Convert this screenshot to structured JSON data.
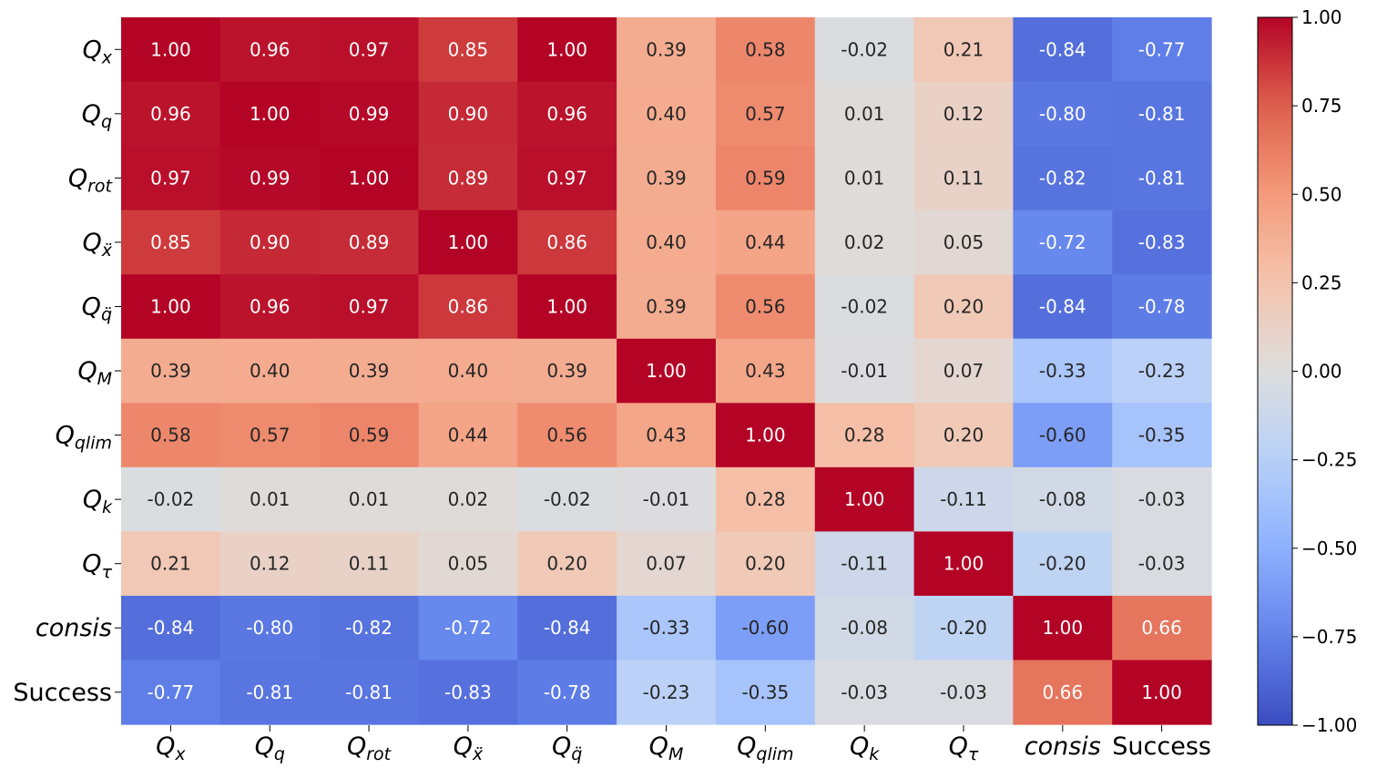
{
  "chart_data": {
    "type": "heatmap",
    "title": "",
    "xlabel": "",
    "ylabel": "",
    "row_labels": [
      "Q_x",
      "Q_q",
      "Q_rot",
      "Q_ẍ",
      "Q_q̈",
      "Q_M",
      "Q_qlim",
      "Q_k",
      "Q_τ",
      "consis",
      "Success"
    ],
    "col_labels": [
      "Q_x",
      "Q_q",
      "Q_rot",
      "Q_ẍ",
      "Q_q̈",
      "Q_M",
      "Q_qlim",
      "Q_k",
      "Q_τ",
      "consis",
      "Success"
    ],
    "values": [
      [
        1.0,
        0.96,
        0.97,
        0.85,
        1.0,
        0.39,
        0.58,
        -0.02,
        0.21,
        -0.84,
        -0.77
      ],
      [
        0.96,
        1.0,
        0.99,
        0.9,
        0.96,
        0.4,
        0.57,
        0.01,
        0.12,
        -0.8,
        -0.81
      ],
      [
        0.97,
        0.99,
        1.0,
        0.89,
        0.97,
        0.39,
        0.59,
        0.01,
        0.11,
        -0.82,
        -0.81
      ],
      [
        0.85,
        0.9,
        0.89,
        1.0,
        0.86,
        0.4,
        0.44,
        0.02,
        0.05,
        -0.72,
        -0.83
      ],
      [
        1.0,
        0.96,
        0.97,
        0.86,
        1.0,
        0.39,
        0.56,
        -0.02,
        0.2,
        -0.84,
        -0.78
      ],
      [
        0.39,
        0.4,
        0.39,
        0.4,
        0.39,
        1.0,
        0.43,
        -0.01,
        0.07,
        -0.33,
        -0.23
      ],
      [
        0.58,
        0.57,
        0.59,
        0.44,
        0.56,
        0.43,
        1.0,
        0.28,
        0.2,
        -0.6,
        -0.35
      ],
      [
        -0.02,
        0.01,
        0.01,
        0.02,
        -0.02,
        -0.01,
        0.28,
        1.0,
        -0.11,
        -0.08,
        -0.03
      ],
      [
        0.21,
        0.12,
        0.11,
        0.05,
        0.2,
        0.07,
        0.2,
        -0.11,
        1.0,
        -0.2,
        -0.03
      ],
      [
        -0.84,
        -0.8,
        -0.82,
        -0.72,
        -0.84,
        -0.33,
        -0.6,
        -0.08,
        -0.2,
        1.0,
        0.66
      ],
      [
        -0.77,
        -0.81,
        -0.81,
        -0.83,
        -0.78,
        -0.23,
        -0.35,
        -0.03,
        -0.03,
        0.66,
        1.0
      ]
    ],
    "value_format": "0.00",
    "colormap": "coolwarm",
    "vmin": -1.0,
    "vmax": 1.0,
    "colorbar": {
      "ticks": [
        1.0,
        0.75,
        0.5,
        0.25,
        0.0,
        -0.25,
        -0.5,
        -0.75,
        -1.0
      ],
      "tick_labels": [
        "1.00",
        "0.75",
        "0.50",
        "0.25",
        "0.00",
        "−0.25",
        "−0.50",
        "−0.75",
        "−1.00"
      ]
    },
    "annotate_cells": true
  }
}
